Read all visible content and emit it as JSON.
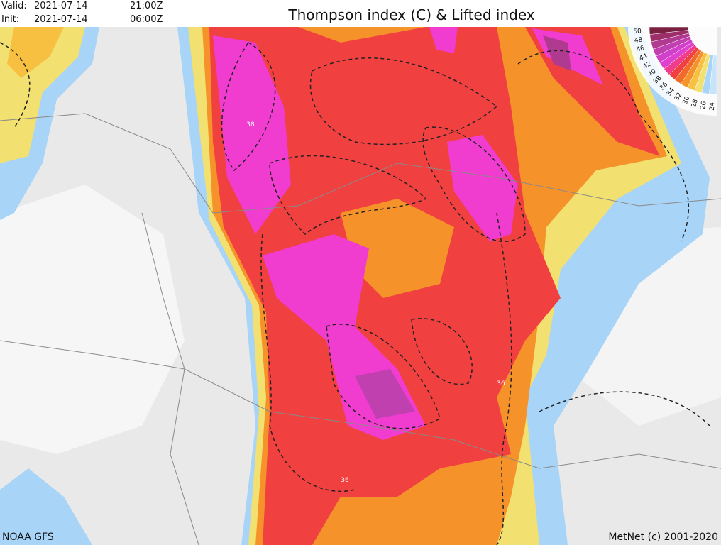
{
  "header": {
    "valid_label": "Valid:",
    "valid_date": "2021-07-14",
    "valid_time": "21:00Z",
    "init_label": "Init:",
    "init_date": "2021-07-14",
    "init_time": "06:00Z"
  },
  "title": "Thompson index (C) & Lifted index",
  "legend": {
    "labels": [
      50,
      48,
      46,
      44,
      42,
      40,
      38,
      36,
      34,
      32,
      30,
      28,
      26,
      24
    ],
    "colors": [
      "#7a2040",
      "#9c2f6a",
      "#b03a8f",
      "#c040b0",
      "#d040c8",
      "#e040d0",
      "#f03c8c",
      "#f04040",
      "#f06a2a",
      "#f5922a",
      "#f7c040",
      "#f2e070",
      "#a8d4f8",
      "#c8e4fa"
    ]
  },
  "contour_labels": [
    "38",
    "36",
    "36"
  ],
  "source": "NOAA GFS",
  "credit": "MetNet (c) 2001-2020"
}
